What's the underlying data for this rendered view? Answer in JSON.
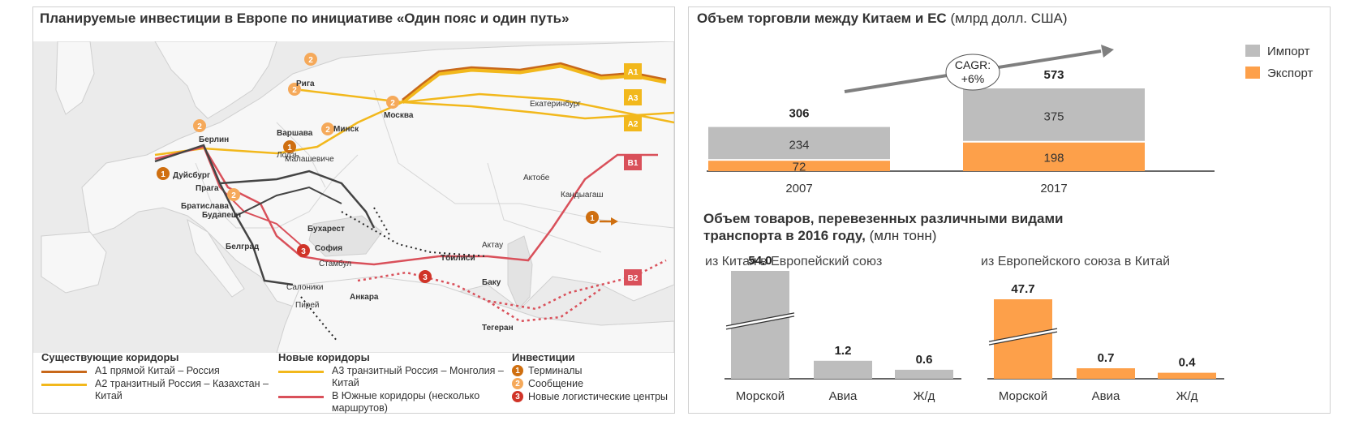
{
  "map_panel": {
    "title": "Планируемые инвестиции в Европе по инициативе «Один пояс и один путь»",
    "cities": [
      {
        "name": "Рига"
      },
      {
        "name": "Москва"
      },
      {
        "name": "Екатеринбург"
      },
      {
        "name": "Минск"
      },
      {
        "name": "Варшава"
      },
      {
        "name": "Берлин"
      },
      {
        "name": "Лодзь"
      },
      {
        "name": "Малашевиче"
      },
      {
        "name": "Дуйсбург"
      },
      {
        "name": "Прага"
      },
      {
        "name": "Братислава"
      },
      {
        "name": "Будапешт"
      },
      {
        "name": "Бухарест"
      },
      {
        "name": "Белград"
      },
      {
        "name": "София"
      },
      {
        "name": "Стамбул"
      },
      {
        "name": "Салоники"
      },
      {
        "name": "Пирей"
      },
      {
        "name": "Анкара"
      },
      {
        "name": "Тбилиси"
      },
      {
        "name": "Актау"
      },
      {
        "name": "Баку"
      },
      {
        "name": "Тегеран"
      },
      {
        "name": "Актобе"
      },
      {
        "name": "Кандыагаш"
      }
    ],
    "corridor_tags": [
      "A1",
      "A3",
      "A2",
      "B1",
      "B2"
    ],
    "legend": {
      "existing_header": "Существующие коридоры",
      "existing": [
        {
          "label": "А1 прямой Китай – Россия",
          "color": "#c8681a"
        },
        {
          "label": "А2 транзитный Россия – Казахстан – Китай",
          "color": "#f2b81c"
        }
      ],
      "new_header": "Новые коридоры",
      "new": [
        {
          "label": "А3 транзитный Россия – Монголия – Китай",
          "color": "#f2b81c"
        },
        {
          "label": "В Южные коридоры (несколько маршрутов)",
          "color": "#d9505a"
        }
      ],
      "investments_header": "Инвестиции",
      "investments": [
        {
          "num": "1",
          "label": "Терминалы",
          "color": "#cf6f10"
        },
        {
          "num": "2",
          "label": "Сообщение",
          "color": "#f5a95a"
        },
        {
          "num": "3",
          "label": "Новые логистические центры",
          "color": "#d03428"
        }
      ]
    }
  },
  "trade_chart": {
    "title": "Объем торговли между Китаем и ЕС",
    "unit": "(млрд долл. США)",
    "cagr_label": "CAGR:",
    "cagr_value": "+6%",
    "legend": [
      {
        "name": "Импорт",
        "color": "#bdbdbd"
      },
      {
        "name": "Экспорт",
        "color": "#fda04a"
      }
    ]
  },
  "chart_data": [
    {
      "type": "bar",
      "stacked": true,
      "title": "Объем торговли между Китаем и ЕС",
      "unit": "(млрд долл. США)",
      "categories": [
        "2007",
        "2017"
      ],
      "series": [
        {
          "name": "Экспорт",
          "values": [
            72,
            198
          ]
        },
        {
          "name": "Импорт",
          "values": [
            234,
            375
          ]
        }
      ],
      "totals": [
        306,
        573
      ],
      "legend_position": "top-right",
      "grid": false
    },
    {
      "type": "bar",
      "title": "из Китая в Европейский союз",
      "categories": [
        "Морской",
        "Авиа",
        "Ж/д"
      ],
      "values": [
        54.0,
        1.2,
        0.6
      ],
      "value_labels": [
        "54.0",
        "1.2",
        "0.6"
      ],
      "broken_axis": true,
      "color": "#bdbdbd"
    },
    {
      "type": "bar",
      "title": "из Европейского союза в Китай",
      "categories": [
        "Морской",
        "Авиа",
        "Ж/д"
      ],
      "values": [
        47.7,
        0.7,
        0.4
      ],
      "value_labels": [
        "47.7",
        "0.7",
        "0.4"
      ],
      "broken_axis": true,
      "color": "#fda04a"
    }
  ],
  "transport_section": {
    "title_line1": "Объем товаров, перевезенных различными видами",
    "title_line2": "транспорта в 2016 году,",
    "unit": "(млн тонн)"
  }
}
